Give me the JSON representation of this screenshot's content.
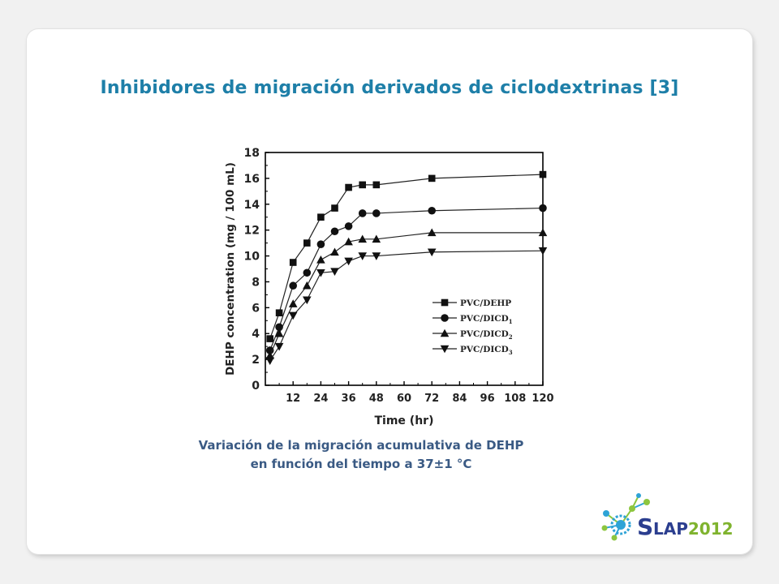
{
  "slide": {
    "title": "Inhibidores de migración derivados de ciclodextrinas [3]",
    "caption_line1": "Variación de la migración acumulativa de DEHP",
    "caption_line2": "en función del tiempo a 37±1 °C"
  },
  "logo": {
    "text": "SLAP2012",
    "colors": {
      "slap": "#2b3e8f",
      "year": "#7fb32e",
      "molecule_green": "#8dc63f",
      "molecule_blue": "#2ea3d6"
    }
  },
  "chart_data": {
    "type": "line",
    "title": "",
    "xlabel": "Time (hr)",
    "ylabel": "DEHP concentration (mg / 100 mL)",
    "xlim": [
      0,
      120
    ],
    "ylim": [
      0,
      18
    ],
    "xticks": [
      12,
      24,
      36,
      48,
      60,
      72,
      84,
      96,
      108,
      120
    ],
    "yticks": [
      0,
      2,
      4,
      6,
      8,
      10,
      12,
      14,
      16,
      18
    ],
    "grid": false,
    "legend_position": "middle-right",
    "series": [
      {
        "name": "PVC/DEHP",
        "sub": "",
        "marker": "square",
        "x": [
          2,
          6,
          12,
          18,
          24,
          30,
          36,
          42,
          48,
          72,
          120
        ],
        "y": [
          3.6,
          5.6,
          9.5,
          11.0,
          13.0,
          13.7,
          15.3,
          15.5,
          15.5,
          16.0,
          16.3
        ]
      },
      {
        "name": "PVC/DICD",
        "sub": "1",
        "marker": "circle",
        "x": [
          2,
          6,
          12,
          18,
          24,
          30,
          36,
          42,
          48,
          72,
          120
        ],
        "y": [
          2.7,
          4.5,
          7.7,
          8.7,
          10.9,
          11.9,
          12.3,
          13.3,
          13.3,
          13.5,
          13.7
        ]
      },
      {
        "name": "PVC/DICD",
        "sub": "2",
        "marker": "triangle-up",
        "x": [
          2,
          6,
          12,
          18,
          24,
          30,
          36,
          42,
          48,
          72,
          120
        ],
        "y": [
          2.3,
          4.0,
          6.3,
          7.7,
          9.7,
          10.3,
          11.1,
          11.3,
          11.3,
          11.8,
          11.8
        ]
      },
      {
        "name": "PVC/DICD",
        "sub": "3",
        "marker": "triangle-down",
        "x": [
          2,
          6,
          12,
          18,
          24,
          30,
          36,
          42,
          48,
          72,
          120
        ],
        "y": [
          1.9,
          3.0,
          5.4,
          6.6,
          8.7,
          8.8,
          9.6,
          10.0,
          10.0,
          10.3,
          10.4
        ]
      }
    ]
  }
}
